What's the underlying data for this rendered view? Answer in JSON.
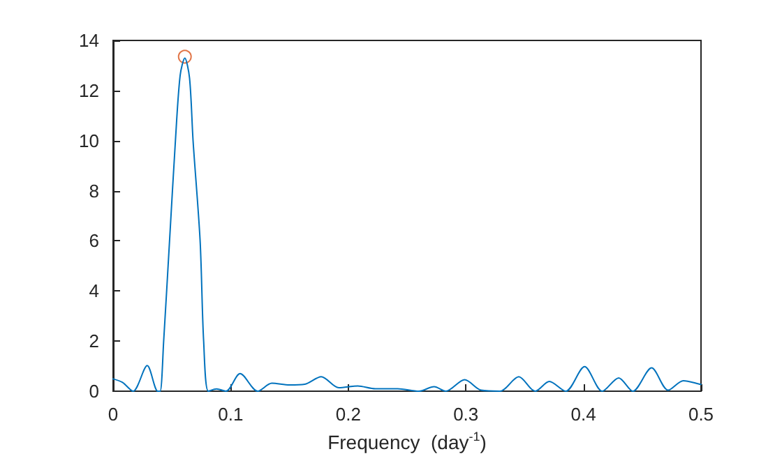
{
  "chart_data": {
    "type": "line",
    "xlabel": "Frequency  (day$^{-1}$)",
    "xlim": [
      0,
      0.5
    ],
    "xticks": [
      0,
      0.1,
      0.2,
      0.3,
      0.4,
      0.5
    ],
    "ylim": [
      0,
      14
    ],
    "yticks": [
      0,
      2,
      4,
      6,
      8,
      10,
      12,
      14
    ],
    "grid": false,
    "series": [
      {
        "color": "#0072bd",
        "marker": "none",
        "x": [
          0,
          0.008,
          0.017,
          0.029,
          0.038,
          0.04,
          0.043,
          0.048,
          0.053,
          0.057,
          0.061,
          0.065,
          0.068,
          0.074,
          0.077,
          0.081,
          0.088,
          0.096,
          0.108,
          0.123,
          0.135,
          0.15,
          0.163,
          0.177,
          0.192,
          0.208,
          0.223,
          0.242,
          0.26,
          0.273,
          0.283,
          0.299,
          0.313,
          0.329,
          0.345,
          0.359,
          0.371,
          0.385,
          0.401,
          0.416,
          0.43,
          0.442,
          0.458,
          0.472,
          0.485,
          0.499,
          0.5
        ],
        "values": [
          0.49,
          0.35,
          0,
          1.02,
          0,
          0,
          2,
          6,
          10,
          12.6,
          13.3,
          12.5,
          10,
          6,
          2,
          0,
          0.09,
          0,
          0.7,
          0,
          0.32,
          0.25,
          0.28,
          0.58,
          0.14,
          0.21,
          0.1,
          0.1,
          0,
          0.18,
          0,
          0.46,
          0.04,
          0,
          0.58,
          0,
          0.39,
          0,
          0.98,
          0,
          0.53,
          0,
          0.93,
          0.04,
          0.42,
          0.28,
          0.27
        ]
      },
      {
        "type": "scatter",
        "color": "#d95319",
        "marker": "circle",
        "x": [
          0.061
        ],
        "values": [
          13.35
        ]
      }
    ]
  }
}
